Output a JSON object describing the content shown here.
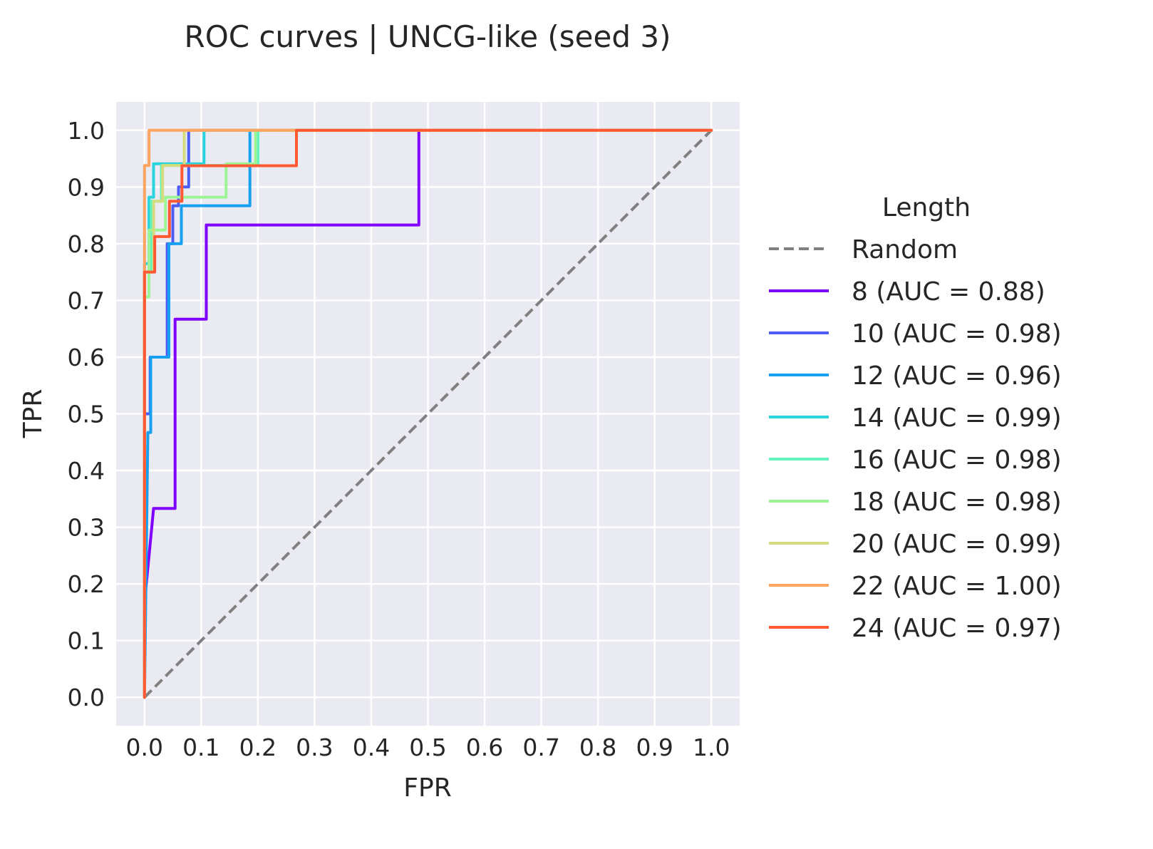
{
  "chart_data": {
    "type": "line",
    "title": "ROC curves | UNCG-like (seed 3)",
    "xlabel": "FPR",
    "ylabel": "TPR",
    "xlim": [
      -0.05,
      1.05
    ],
    "ylim": [
      -0.05,
      1.05
    ],
    "xticks": [
      "0.0",
      "0.1",
      "0.2",
      "0.3",
      "0.4",
      "0.5",
      "0.6",
      "0.7",
      "0.8",
      "0.9",
      "1.0"
    ],
    "yticks": [
      "0.0",
      "0.1",
      "0.2",
      "0.3",
      "0.4",
      "0.5",
      "0.6",
      "0.7",
      "0.8",
      "0.9",
      "1.0"
    ],
    "grid": true,
    "legend": {
      "title": "Length",
      "placement": "outside-right"
    },
    "reference": {
      "name": "Random",
      "color": "#808080",
      "style": "dashed",
      "x": [
        0,
        1
      ],
      "y": [
        0,
        1
      ]
    },
    "series": [
      {
        "name": "8 (AUC = 0.88)",
        "color": "#8000ff",
        "x": [
          0,
          0,
          0.016,
          0.054,
          0.054,
          0.109,
          0.109,
          0.484,
          0.484,
          1.0
        ],
        "y": [
          0,
          0.167,
          0.333,
          0.333,
          0.667,
          0.667,
          0.833,
          0.833,
          1.0,
          1.0
        ]
      },
      {
        "name": "10 (AUC = 0.98)",
        "color": "#4c5cf5",
        "x": [
          0,
          0,
          0.01,
          0.01,
          0.04,
          0.04,
          0.05,
          0.05,
          0.06,
          0.06,
          0.078,
          0.078,
          1.0
        ],
        "y": [
          0,
          0.5,
          0.5,
          0.6,
          0.6,
          0.8,
          0.8,
          0.867,
          0.867,
          0.9,
          0.9,
          1.0,
          1.0
        ]
      },
      {
        "name": "12 (AUC = 0.96)",
        "color": "#18a0f0",
        "x": [
          0,
          0.006,
          0.006,
          0.011,
          0.011,
          0.043,
          0.043,
          0.065,
          0.065,
          0.186,
          0.186,
          1.0
        ],
        "y": [
          0,
          0.467,
          0.467,
          0.467,
          0.6,
          0.6,
          0.8,
          0.8,
          0.867,
          0.867,
          1.0,
          1.0
        ]
      },
      {
        "name": "14 (AUC = 0.99)",
        "color": "#2ad4dc",
        "x": [
          0,
          0,
          0.008,
          0.008,
          0.016,
          0.016,
          0.105,
          0.105,
          1.0
        ],
        "y": [
          0,
          0.765,
          0.765,
          0.882,
          0.882,
          0.941,
          0.941,
          1.0,
          1.0
        ]
      },
      {
        "name": "16 (AUC = 0.98)",
        "color": "#62f4bc",
        "x": [
          0,
          0,
          0.012,
          0.012,
          0.03,
          0.03,
          0.2,
          0.2,
          0.208,
          0.208,
          1.0
        ],
        "y": [
          0,
          0.75,
          0.75,
          0.875,
          0.875,
          0.938,
          0.938,
          1.0,
          1.0,
          1.0,
          1.0
        ]
      },
      {
        "name": "18 (AUC = 0.98)",
        "color": "#9cf494",
        "x": [
          0,
          0,
          0.008,
          0.008,
          0.02,
          0.02,
          0.037,
          0.037,
          0.144,
          0.144,
          0.196,
          0.196,
          1.0
        ],
        "y": [
          0,
          0.706,
          0.706,
          0.824,
          0.824,
          0.824,
          0.824,
          0.882,
          0.882,
          0.941,
          0.941,
          1.0,
          1.0
        ]
      },
      {
        "name": "20 (AUC = 0.99)",
        "color": "#d4dc7f",
        "x": [
          0,
          0,
          0.016,
          0.016,
          0.032,
          0.032,
          0.07,
          0.07,
          1.0
        ],
        "y": [
          0,
          0.75,
          0.75,
          0.875,
          0.875,
          0.938,
          0.938,
          1.0,
          1.0
        ]
      },
      {
        "name": "22 (AUC = 1.00)",
        "color": "#fea461",
        "x": [
          0,
          0,
          0.008,
          0.008,
          1.0
        ],
        "y": [
          0,
          0.938,
          0.938,
          1.0,
          1.0
        ]
      },
      {
        "name": "24 (AUC = 0.97)",
        "color": "#ff5933",
        "x": [
          0,
          0,
          0.018,
          0.018,
          0.044,
          0.044,
          0.066,
          0.066,
          0.268,
          0.268,
          1.0
        ],
        "y": [
          0,
          0.75,
          0.75,
          0.8125,
          0.8125,
          0.875,
          0.875,
          0.9375,
          0.9375,
          1.0,
          1.0
        ]
      }
    ]
  }
}
